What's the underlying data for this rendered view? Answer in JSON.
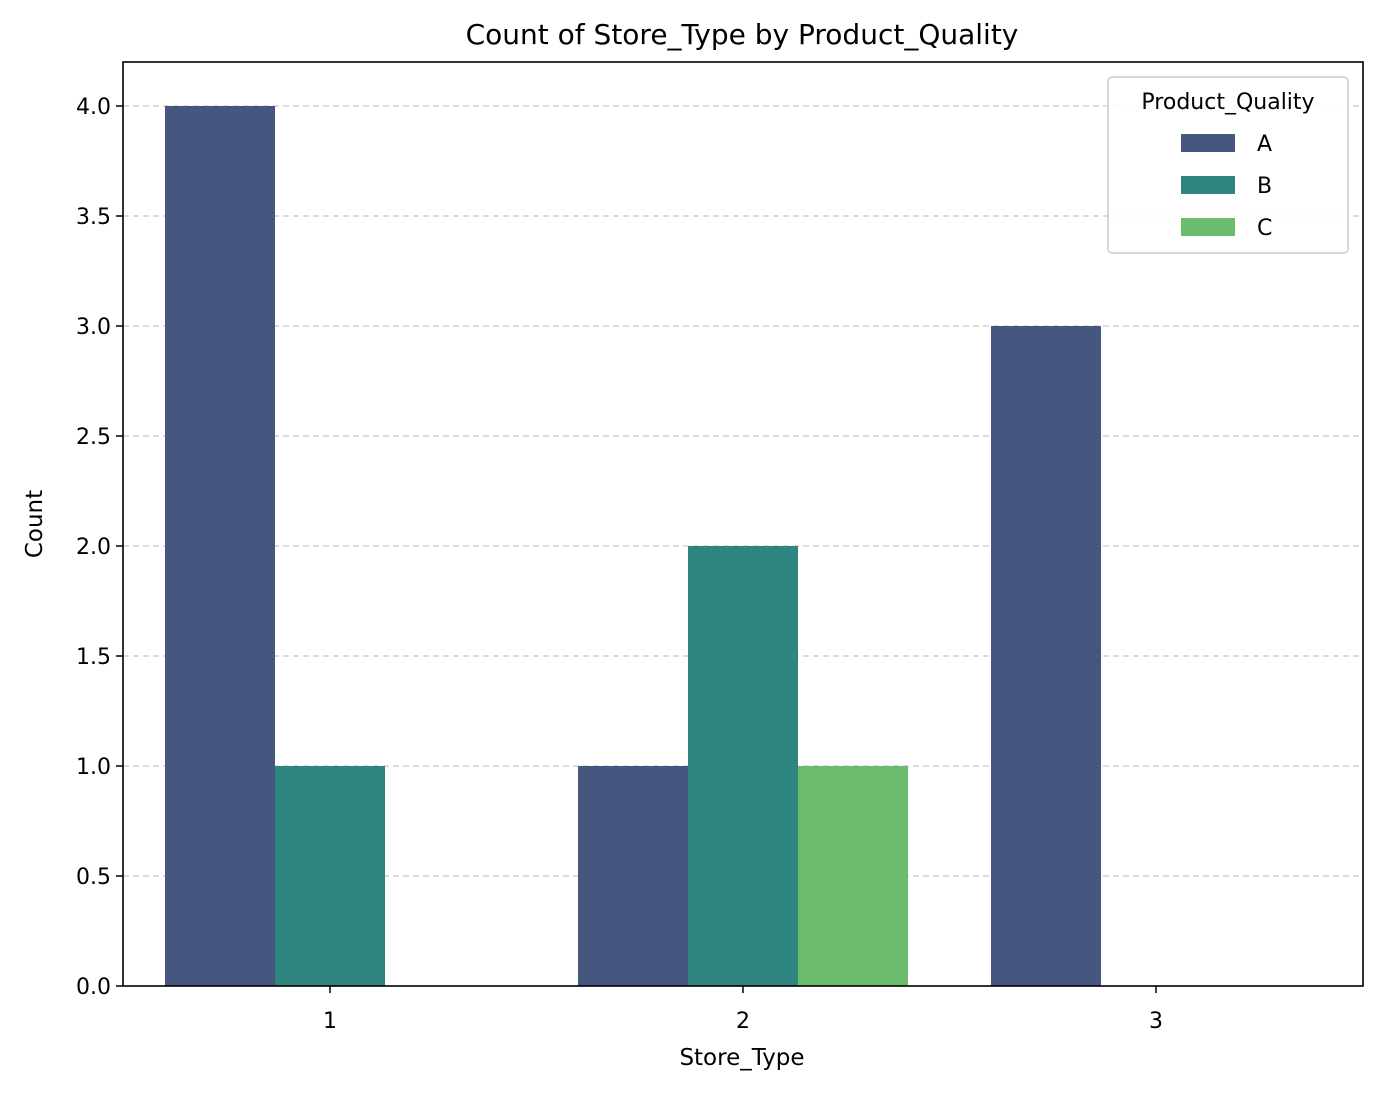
{
  "chart_data": {
    "type": "bar",
    "title": "Count of Store_Type by Product_Quality",
    "xlabel": "Store_Type",
    "ylabel": "Count",
    "categories": [
      "1",
      "2",
      "3"
    ],
    "series": [
      {
        "name": "A",
        "values": [
          4,
          1,
          3
        ],
        "color": "#45577f"
      },
      {
        "name": "B",
        "values": [
          1,
          2,
          0
        ],
        "color": "#2e847e"
      },
      {
        "name": "C",
        "values": [
          0,
          1,
          0
        ],
        "color": "#6bbd6d"
      }
    ],
    "ylim": [
      0,
      4.2
    ],
    "yticks": [
      "0.0",
      "0.5",
      "1.0",
      "1.5",
      "2.0",
      "2.5",
      "3.0",
      "3.5",
      "4.0"
    ],
    "grid": "y-dashed",
    "legend": {
      "title": "Product_Quality",
      "placement": "top-right"
    }
  }
}
